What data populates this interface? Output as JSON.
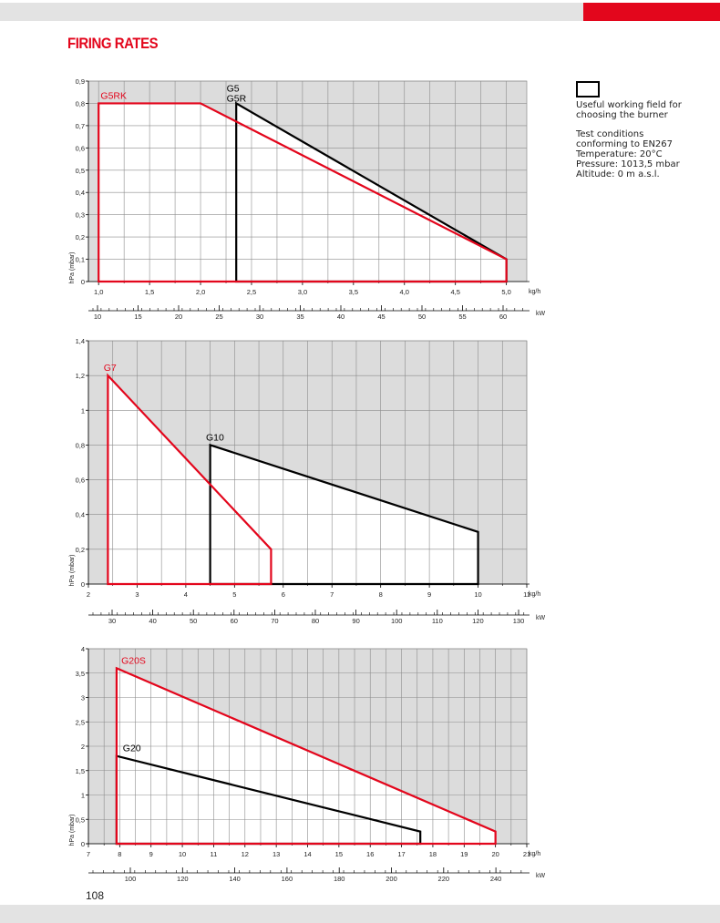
{
  "page": {
    "title": "FIRING RATES",
    "page_number": "108",
    "legend_text": "Useful working field for choosing the burner",
    "test_conditions": [
      "Test conditions conforming to EN267",
      "Temperature: 20°C",
      "Pressure: 1013,5 mbar",
      "Altitude: 0 m a.s.l."
    ]
  },
  "colors": {
    "red": "#e3061c",
    "black": "#000000",
    "grey_field": "#dcdcdc",
    "grid": "#8c8c8c"
  },
  "chart_data": [
    {
      "type": "area",
      "ylabel": "hPa (mbar)",
      "xlabel": "kg/h",
      "x2label": "kW",
      "xlim": [
        0.9,
        5.2
      ],
      "ylim": [
        0,
        0.9
      ],
      "x_ticks": [
        "1,0",
        "1,5",
        "2,0",
        "2,5",
        "3,0",
        "3,5",
        "4,0",
        "4,5",
        "5,0"
      ],
      "y_ticks": [
        "0",
        "0,1",
        "0,2",
        "0,3",
        "0,4",
        "0,5",
        "0,6",
        "0,7",
        "0,8",
        "0,9"
      ],
      "kw_ticks": [
        "10",
        "15",
        "20",
        "25",
        "30",
        "35",
        "40",
        "45",
        "50",
        "55",
        "60"
      ],
      "series": [
        {
          "name": "G5RK",
          "color": "red",
          "points": [
            [
              1.0,
              0
            ],
            [
              1.0,
              0.8
            ],
            [
              2.0,
              0.8
            ],
            [
              5.0,
              0.1
            ],
            [
              5.0,
              0
            ]
          ]
        },
        {
          "name": "G5",
          "name2": "G5R",
          "color": "black",
          "points": [
            [
              2.35,
              0
            ],
            [
              2.35,
              0.8
            ],
            [
              5.0,
              0.1
            ],
            [
              5.0,
              0
            ]
          ]
        }
      ]
    },
    {
      "type": "area",
      "ylabel": "hPa (mbar)",
      "xlabel": "kg/h",
      "x2label": "kW",
      "xlim": [
        2,
        11
      ],
      "ylim": [
        0,
        1.4
      ],
      "x_ticks": [
        "2",
        "3",
        "4",
        "5",
        "6",
        "7",
        "8",
        "9",
        "10",
        "11"
      ],
      "y_ticks": [
        "0",
        "0,2",
        "0,4",
        "0,6",
        "0,8",
        "1",
        "1,2",
        "1,4"
      ],
      "kw_ticks": [
        "30",
        "40",
        "50",
        "60",
        "70",
        "80",
        "90",
        "100",
        "110",
        "120",
        "130"
      ],
      "series": [
        {
          "name": "G7",
          "color": "red",
          "points": [
            [
              2.4,
              0
            ],
            [
              2.4,
              1.2
            ],
            [
              5.75,
              0.2
            ],
            [
              5.75,
              0
            ]
          ]
        },
        {
          "name": "G10",
          "color": "black",
          "points": [
            [
              4.5,
              0
            ],
            [
              4.5,
              0.8
            ],
            [
              10.0,
              0.3
            ],
            [
              10.0,
              0
            ]
          ]
        }
      ]
    },
    {
      "type": "area",
      "ylabel": "hPa (mbar)",
      "xlabel": "kg/h",
      "x2label": "kW",
      "xlim": [
        7,
        21
      ],
      "ylim": [
        0,
        4
      ],
      "x_ticks": [
        "7",
        "8",
        "9",
        "10",
        "11",
        "12",
        "13",
        "14",
        "15",
        "16",
        "17",
        "18",
        "19",
        "20",
        "21"
      ],
      "y_ticks": [
        "0",
        "0,5",
        "1",
        "1,5",
        "2",
        "2,5",
        "3",
        "3,5",
        "4"
      ],
      "kw_ticks": [
        "100",
        "120",
        "140",
        "160",
        "180",
        "200",
        "220",
        "240"
      ],
      "series": [
        {
          "name": "G20S",
          "color": "red",
          "points": [
            [
              7.9,
              0
            ],
            [
              7.9,
              3.6
            ],
            [
              20.0,
              0.25
            ],
            [
              20.0,
              0
            ]
          ]
        },
        {
          "name": "G20",
          "color": "black",
          "points": [
            [
              7.9,
              0
            ],
            [
              7.9,
              1.8
            ],
            [
              17.6,
              0.25
            ],
            [
              17.6,
              0
            ]
          ]
        }
      ]
    }
  ]
}
